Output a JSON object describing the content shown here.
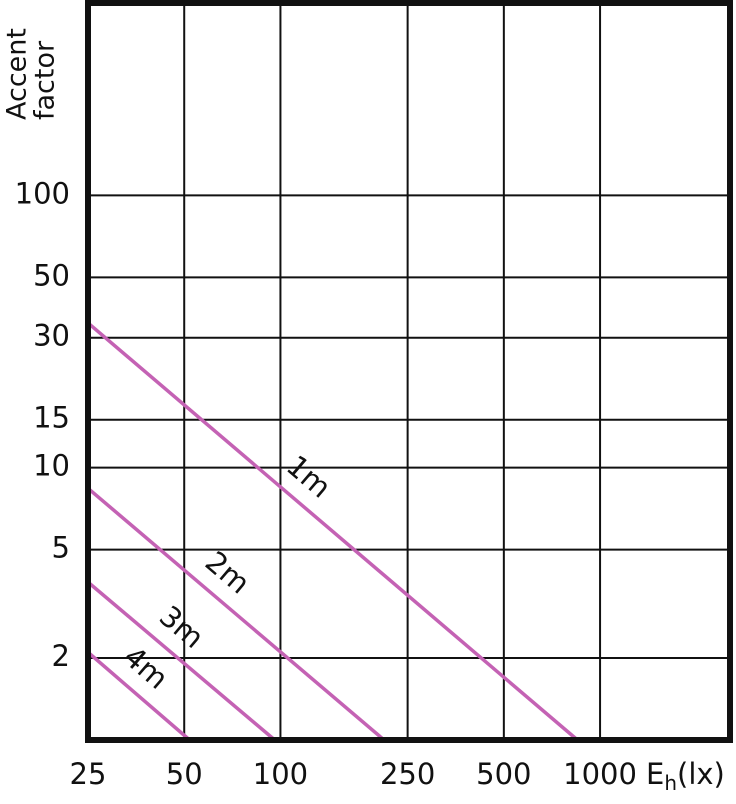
{
  "chart_data": {
    "type": "line",
    "x_label_parts": [
      "E",
      "h",
      "(lx)"
    ],
    "y_label_lines": [
      "Accent",
      "factor"
    ],
    "xscale": "log",
    "yscale": "log",
    "xlim": [
      25,
      2550
    ],
    "ylim": [
      1,
      500
    ],
    "xticks": [
      25,
      50,
      100,
      250,
      500,
      1000
    ],
    "yticks": [
      2,
      5,
      10,
      15,
      30,
      50,
      100
    ],
    "grid": true,
    "series": [
      {
        "name": "1m",
        "color": "#c462b4",
        "x": [
          25,
          850
        ],
        "values": [
          34,
          1
        ]
      },
      {
        "name": "2m",
        "color": "#c462b4",
        "x": [
          25,
          211
        ],
        "values": [
          8.4,
          1
        ]
      },
      {
        "name": "3m",
        "color": "#c462b4",
        "x": [
          25,
          96
        ],
        "values": [
          3.8,
          1
        ]
      },
      {
        "name": "4m",
        "color": "#c462b4",
        "x": [
          25,
          52
        ],
        "values": [
          2.1,
          1
        ]
      }
    ]
  }
}
